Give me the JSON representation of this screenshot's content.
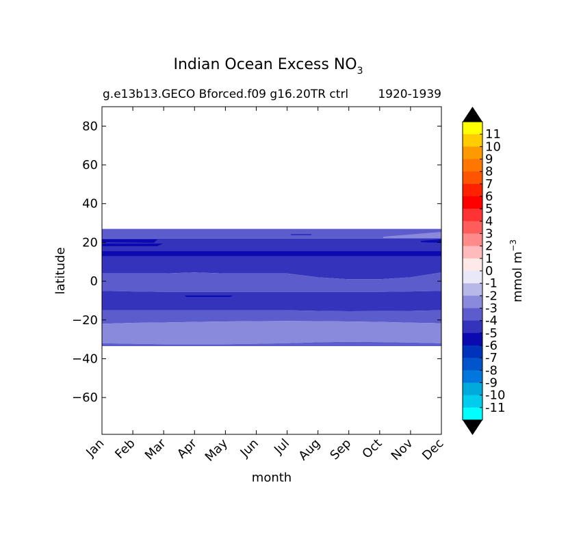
{
  "chart_data": {
    "type": "contour",
    "title": "Indian Ocean Excess NO",
    "title_subscript": "3",
    "subtitle_left": "g.e13b13.GECO Bforced.f09 g16.20TR ctrl",
    "subtitle_right": "1920-1939",
    "xlabel": "month",
    "ylabel": "latitude",
    "x_categories": [
      "Jan",
      "Feb",
      "Mar",
      "Apr",
      "May",
      "Jun",
      "Jul",
      "Aug",
      "Sep",
      "Oct",
      "Nov",
      "Dec"
    ],
    "ylim": [
      -79,
      90
    ],
    "yticks": [
      80,
      60,
      40,
      20,
      0,
      -20,
      -40,
      -60
    ],
    "ytick_labels": [
      "80",
      "60",
      "40",
      "20",
      "0",
      "−20",
      "−40",
      "−60"
    ],
    "colorbar": {
      "label": "mmol m",
      "label_superscript": "−3",
      "extend": "both",
      "extend_color": "#000000",
      "levels": [
        "11",
        "10",
        "9",
        "8",
        "7",
        "6",
        "5",
        "4",
        "3",
        "2",
        "1",
        "0",
        "-1",
        "-2",
        "-3",
        "-4",
        "-5",
        "-6",
        "-7",
        "-8",
        "-9",
        "-10",
        "-11"
      ],
      "colors": [
        "#ffff00",
        "#ffcc00",
        "#ff9900",
        "#ff7700",
        "#ff5500",
        "#ff2200",
        "#ff0000",
        "#ff3333",
        "#ff5c5c",
        "#ff8a8a",
        "#ffbbbb",
        "#ffe8e8",
        "#e8e8f8",
        "#b8b8e8",
        "#8a8adc",
        "#5c5ccc",
        "#3333bb",
        "#0a0ab0",
        "#0033bb",
        "#0055cc",
        "#0077dd",
        "#00aadd",
        "#00ccee",
        "#00ffff"
      ]
    },
    "bands": [
      {
        "value": -4,
        "color": "#5c5ccc",
        "lat_top": 27,
        "lat_bottom": 22
      },
      {
        "value": -5,
        "color": "#3333bb",
        "lat_top": 22,
        "lat_bottom": 4
      },
      {
        "value": -6,
        "color": "#0a0ab0",
        "lat_top": 15.5,
        "lat_bottom": 13
      },
      {
        "value": -4,
        "color": "#5c5ccc",
        "lat_top": 4,
        "lat_bottom": -5
      },
      {
        "value": -5,
        "color": "#3333bb",
        "lat_top": -5,
        "lat_bottom": -15
      },
      {
        "value": -4,
        "color": "#5c5ccc",
        "lat_top": -15,
        "lat_bottom": -22
      },
      {
        "value": -3,
        "color": "#8a8adc",
        "lat_top": -22,
        "lat_bottom": -32
      },
      {
        "value": -4,
        "color": "#5c5ccc",
        "lat_top": -32,
        "lat_bottom": -33.5
      }
    ]
  }
}
